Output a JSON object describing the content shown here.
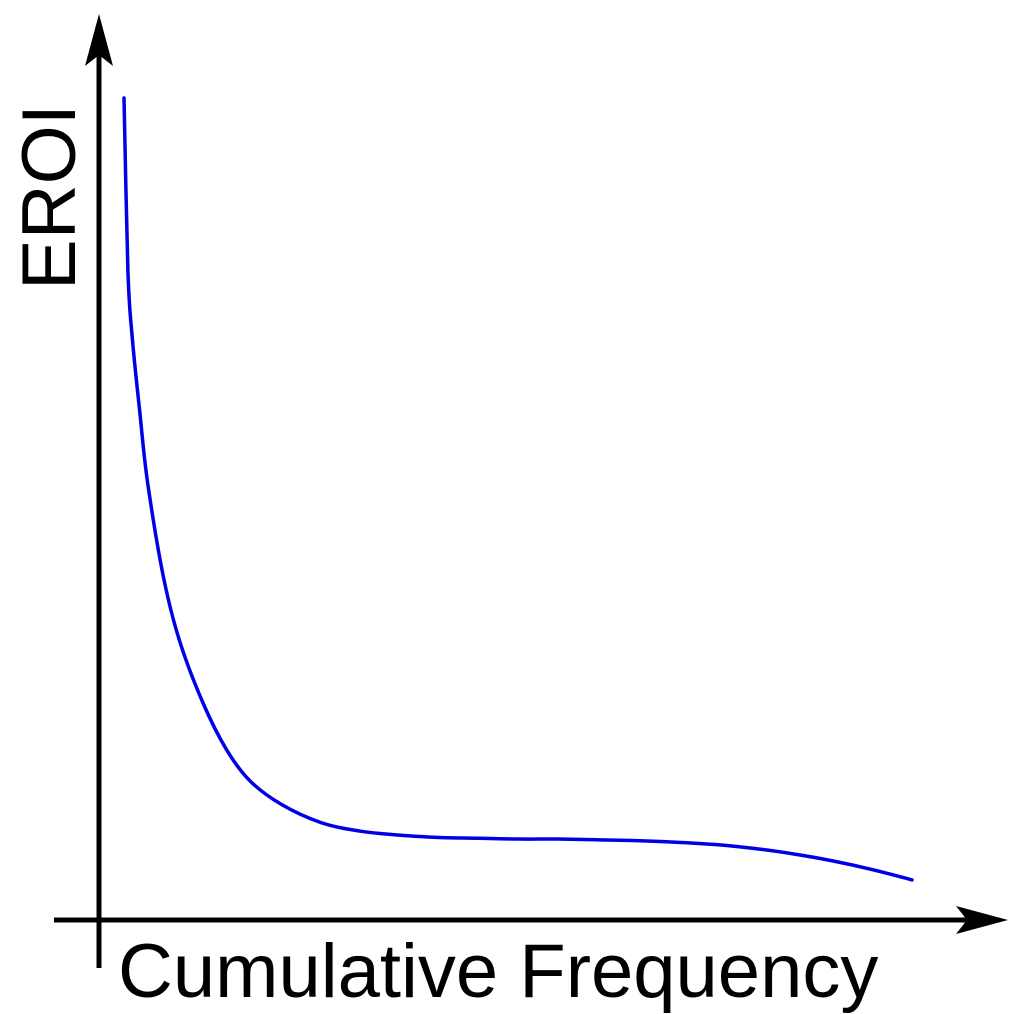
{
  "chart_data": {
    "type": "line",
    "title": "",
    "xlabel": "Cumulative Frequency",
    "ylabel": "EROI",
    "xlim": [
      0,
      1
    ],
    "ylim": [
      0,
      1
    ],
    "grid": false,
    "legend": "none",
    "series": [
      {
        "color": "#0000e6",
        "x": [
          0.0,
          0.005,
          0.01,
          0.02,
          0.03,
          0.05,
          0.07,
          0.1,
          0.13,
          0.16,
          0.2,
          0.25,
          0.3,
          0.35,
          0.4,
          0.45,
          0.5,
          0.55,
          0.6,
          0.65,
          0.7,
          0.75,
          0.8,
          0.85,
          0.9,
          0.95,
          1.0
        ],
        "y": [
          1.0,
          0.78,
          0.7,
          0.6,
          0.51,
          0.39,
          0.31,
          0.23,
          0.17,
          0.13,
          0.1,
          0.077,
          0.066,
          0.061,
          0.058,
          0.057,
          0.056,
          0.056,
          0.055,
          0.054,
          0.052,
          0.049,
          0.044,
          0.037,
          0.028,
          0.017,
          0.004
        ]
      }
    ]
  }
}
